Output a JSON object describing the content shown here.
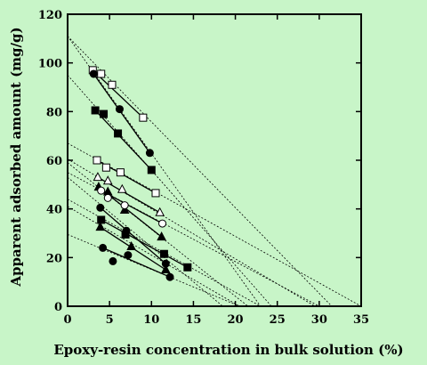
{
  "chart_data": {
    "type": "scatter",
    "xlabel": "Epoxy-resin concentration in bulk solution (%)",
    "ylabel": "Apparent adsorbed amount (mg/g)",
    "xlim": [
      0,
      35
    ],
    "ylim": [
      0,
      120
    ],
    "xticks": [
      0,
      5,
      10,
      15,
      20,
      25,
      30,
      35
    ],
    "yticks": [
      0,
      20,
      40,
      60,
      80,
      100,
      120
    ],
    "grid": false,
    "legend": "none",
    "series": [
      {
        "marker": "open-square",
        "values": [
          [
            3,
            97
          ],
          [
            4,
            95.5
          ],
          [
            5.3,
            91
          ],
          [
            9,
            77.5
          ]
        ],
        "fit": [
          [
            3,
            97
          ],
          [
            9,
            77.5
          ]
        ],
        "extrap": [
          [
            0,
            111
          ],
          [
            31.5,
            0
          ]
        ]
      },
      {
        "marker": "filled-circle",
        "values": [
          [
            3.1,
            95.5
          ],
          [
            6.2,
            81
          ],
          [
            9.8,
            63
          ]
        ],
        "fit": [
          [
            3.1,
            95.5
          ],
          [
            9.8,
            63
          ]
        ],
        "extrap": [
          [
            0,
            111
          ],
          [
            23,
            0
          ]
        ]
      },
      {
        "marker": "filled-square",
        "values": [
          [
            3.3,
            80.5
          ],
          [
            4.3,
            79
          ],
          [
            6,
            71
          ],
          [
            10,
            56
          ]
        ],
        "fit": [
          [
            3.3,
            80.5
          ],
          [
            10,
            56
          ]
        ],
        "extrap": [
          [
            0,
            95
          ],
          [
            24.3,
            0
          ]
        ]
      },
      {
        "marker": "open-square",
        "values": [
          [
            3.5,
            60
          ],
          [
            4.6,
            57
          ],
          [
            6.3,
            55
          ],
          [
            10.5,
            46.5
          ]
        ],
        "fit": [
          [
            3.5,
            60
          ],
          [
            10.5,
            46.5
          ]
        ],
        "extrap": [
          [
            0,
            67
          ],
          [
            35,
            0
          ]
        ]
      },
      {
        "marker": "open-triangle",
        "values": [
          [
            3.6,
            53
          ],
          [
            4.8,
            51.5
          ],
          [
            6.5,
            48
          ],
          [
            11,
            38.5
          ]
        ],
        "fit": [
          [
            3.6,
            53
          ],
          [
            11,
            38.5
          ]
        ],
        "extrap": [
          [
            0,
            60.5
          ],
          [
            29.5,
            0
          ]
        ]
      },
      {
        "marker": "filled-triangle",
        "values": [
          [
            3.7,
            49
          ],
          [
            4.8,
            47
          ],
          [
            6.8,
            39.5
          ],
          [
            11.2,
            28.5
          ]
        ],
        "fit": [
          [
            3.7,
            49
          ],
          [
            11.2,
            28.5
          ]
        ],
        "extrap": [
          [
            0,
            59
          ],
          [
            21.5,
            0
          ]
        ]
      },
      {
        "marker": "open-circle",
        "values": [
          [
            4,
            47.5
          ],
          [
            4.8,
            44.5
          ],
          [
            6.8,
            41.5
          ],
          [
            11.3,
            34
          ]
        ],
        "fit": [
          [
            4,
            47.5
          ],
          [
            11.3,
            34
          ]
        ],
        "extrap": [
          [
            0,
            55
          ],
          [
            30,
            0
          ]
        ]
      },
      {
        "marker": "filled-circle",
        "values": [
          [
            3.9,
            40.5
          ],
          [
            7,
            31
          ],
          [
            11.7,
            17.5
          ]
        ],
        "fit": [
          [
            3.9,
            40.5
          ],
          [
            11.7,
            17.5
          ]
        ],
        "extrap": [
          [
            0,
            53
          ],
          [
            18.5,
            0
          ]
        ]
      },
      {
        "marker": "filled-square",
        "values": [
          [
            4,
            35.5
          ],
          [
            6.9,
            29.5
          ],
          [
            11.5,
            21.5
          ],
          [
            14.3,
            16
          ]
        ],
        "fit": [
          [
            4,
            35.5
          ],
          [
            14.3,
            16
          ]
        ],
        "extrap": [
          [
            0,
            44
          ],
          [
            23,
            0
          ]
        ]
      },
      {
        "marker": "filled-triangle",
        "values": [
          [
            3.9,
            32.5
          ],
          [
            7.6,
            24.5
          ],
          [
            11.7,
            15
          ]
        ],
        "fit": [
          [
            3.9,
            32.5
          ],
          [
            11.7,
            15
          ]
        ],
        "extrap": [
          [
            0,
            41
          ],
          [
            20.5,
            0
          ]
        ]
      },
      {
        "marker": "filled-circle",
        "values": [
          [
            4.2,
            24
          ],
          [
            7.2,
            21
          ],
          [
            12.2,
            12
          ]
        ],
        "fit": [
          [
            4.2,
            24
          ],
          [
            12.2,
            12
          ]
        ],
        "extrap": [
          [
            0,
            29.5
          ],
          [
            20.5,
            0
          ]
        ]
      },
      {
        "marker": "filled-circle",
        "values": [
          [
            5.4,
            18.5
          ]
        ],
        "fit": [],
        "extrap": []
      }
    ]
  }
}
